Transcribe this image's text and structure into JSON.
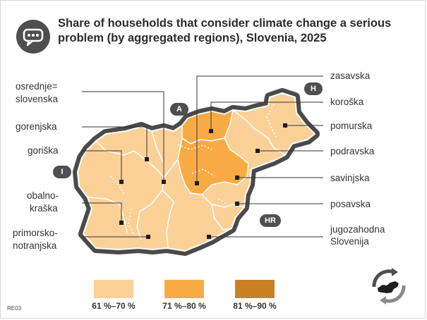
{
  "title": "Share of households that consider climate change a serious problem (by aggregated regions), Slovenia, 2025",
  "code": "RE03",
  "colors": {
    "c61_70": "#fbd198",
    "c71_80": "#f8ab45",
    "c81_90": "#c98126",
    "border": "#555555",
    "line": "#333333"
  },
  "neighbours": {
    "A": "A",
    "H": "H",
    "I": "I",
    "HR": "HR"
  },
  "regions": [
    {
      "name": "zasavska",
      "class": "71 %–80 %"
    },
    {
      "name": "koroška",
      "class": "71 %–80 %"
    },
    {
      "name": "pomurska",
      "class": "61 %–70 %"
    },
    {
      "name": "podravska",
      "class": "61 %–70 %"
    },
    {
      "name": "savinjska",
      "class": "71 %–80 %"
    },
    {
      "name": "posavska",
      "class": "61 %–70 %"
    },
    {
      "name": "jugozahodna Slovenija",
      "class": "61 %–70 %"
    },
    {
      "name": "osrednje= slovenska",
      "class": "61 %–70 %"
    },
    {
      "name": "gorenjska",
      "class": "61 %–70 %"
    },
    {
      "name": "goriška",
      "class": "61 %–70 %"
    },
    {
      "name": "obalno- kraška",
      "class": "61 %–70 %"
    },
    {
      "name": "primorsko- notranjska",
      "class": "61 %–70 %"
    }
  ],
  "labels": {
    "zasavska": "zasavska",
    "koroska": "koroška",
    "pomurska": "pomurska",
    "podravska": "podravska",
    "savinjska": "savinjska",
    "posavska": "posavska",
    "jugozahodna_1": "jugozahodna",
    "jugozahodna_2": "Slovenija",
    "osrednje_1": "osrednje=",
    "osrednje_2": "slovenska",
    "gorenjska": "gorenjska",
    "goriska": "goriška",
    "obalno_1": "obalno-",
    "obalno_2": "kraška",
    "primorsko_1": "primorsko-",
    "primorsko_2": "notranjska"
  },
  "legend": [
    {
      "label": "61 %–70 %",
      "color": "#fbd198"
    },
    {
      "label": "71 %–80 %",
      "color": "#f8ab45"
    },
    {
      "label": "81 %–90 %",
      "color": "#c98126"
    }
  ],
  "icons": {
    "title": "chat-bubble-icon",
    "corner": "slovenia-recycle-logo"
  }
}
